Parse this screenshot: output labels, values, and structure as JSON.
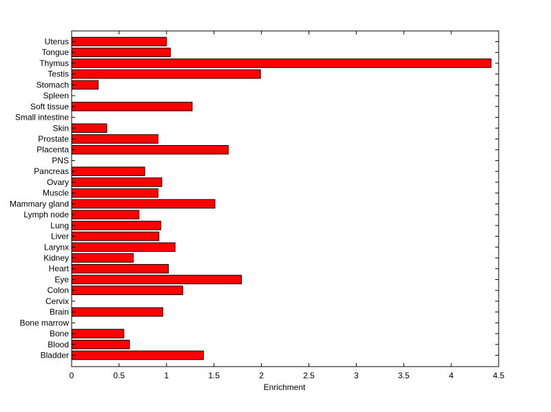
{
  "chart_data": {
    "type": "bar",
    "orientation": "horizontal",
    "title": "",
    "xlabel": "Enrichment",
    "ylabel": "",
    "xlim": [
      0,
      4.5
    ],
    "xticks": [
      0,
      0.5,
      1,
      1.5,
      2,
      2.5,
      3,
      3.5,
      4,
      4.5
    ],
    "xtick_labels": [
      "0",
      "0.5",
      "1",
      "1.5",
      "2",
      "2.5",
      "3",
      "3.5",
      "4",
      "4.5"
    ],
    "grid": false,
    "bar_color": "#ff0000",
    "categories": [
      "Bladder",
      "Blood",
      "Bone",
      "Bone marrow",
      "Brain",
      "Cervix",
      "Colon",
      "Eye",
      "Heart",
      "Kidney",
      "Larynx",
      "Liver",
      "Lung",
      "Lymph node",
      "Mammary gland",
      "Muscle",
      "Ovary",
      "Pancreas",
      "PNS",
      "Placenta",
      "Prostate",
      "Skin",
      "Small intestine",
      "Soft tissue",
      "Spleen",
      "Stomach",
      "Testis",
      "Thymus",
      "Tongue",
      "Uterus"
    ],
    "values": [
      1.39,
      0.61,
      0.55,
      0,
      0.96,
      0,
      1.17,
      1.79,
      1.02,
      0.65,
      1.09,
      0.92,
      0.94,
      0.71,
      1.51,
      0.91,
      0.95,
      0.77,
      0,
      1.65,
      0.91,
      0.37,
      0,
      1.27,
      0,
      0.28,
      1.99,
      4.42,
      1.04,
      1.0
    ]
  }
}
